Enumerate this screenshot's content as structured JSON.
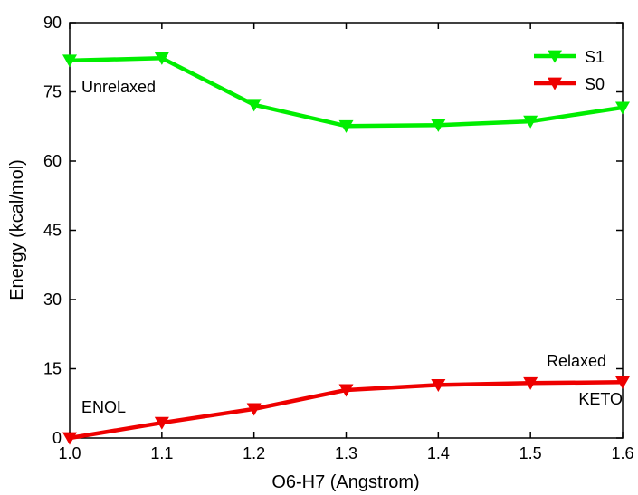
{
  "chart_data": {
    "type": "line",
    "title": "",
    "xlabel": "O6-H7 (Angstrom)",
    "ylabel": "Energy (kcal/mol)",
    "xlim": [
      1.0,
      1.6
    ],
    "ylim": [
      0,
      90
    ],
    "xticks": [
      1.0,
      1.1,
      1.2,
      1.3,
      1.4,
      1.5,
      1.6
    ],
    "xtick_labels": [
      "1.0",
      "1.1",
      "1.2",
      "1.3",
      "1.4",
      "1.5",
      "1.6"
    ],
    "yticks": [
      0,
      15,
      30,
      45,
      60,
      75,
      90
    ],
    "ytick_labels": [
      "0",
      "15",
      "30",
      "45",
      "60",
      "75",
      "90"
    ],
    "grid": false,
    "legend_position": "top-right",
    "x": [
      1.0,
      1.1,
      1.2,
      1.3,
      1.4,
      1.5,
      1.6
    ],
    "series": [
      {
        "name": "S1",
        "color": "#00ee00",
        "marker": "triangle-down",
        "values": [
          81.8,
          82.3,
          72.2,
          67.6,
          67.8,
          68.6,
          71.6
        ]
      },
      {
        "name": "S0",
        "color": "#ee0000",
        "marker": "triangle-down",
        "values": [
          0.0,
          3.3,
          6.3,
          10.4,
          11.5,
          11.9,
          12.1
        ]
      }
    ],
    "annotations": [
      {
        "key": "unrelaxed",
        "text": "Unrelaxed"
      },
      {
        "key": "relaxed",
        "text": "Relaxed"
      },
      {
        "key": "enol",
        "text": "ENOL"
      },
      {
        "key": "keto",
        "text": "KETO"
      }
    ]
  }
}
